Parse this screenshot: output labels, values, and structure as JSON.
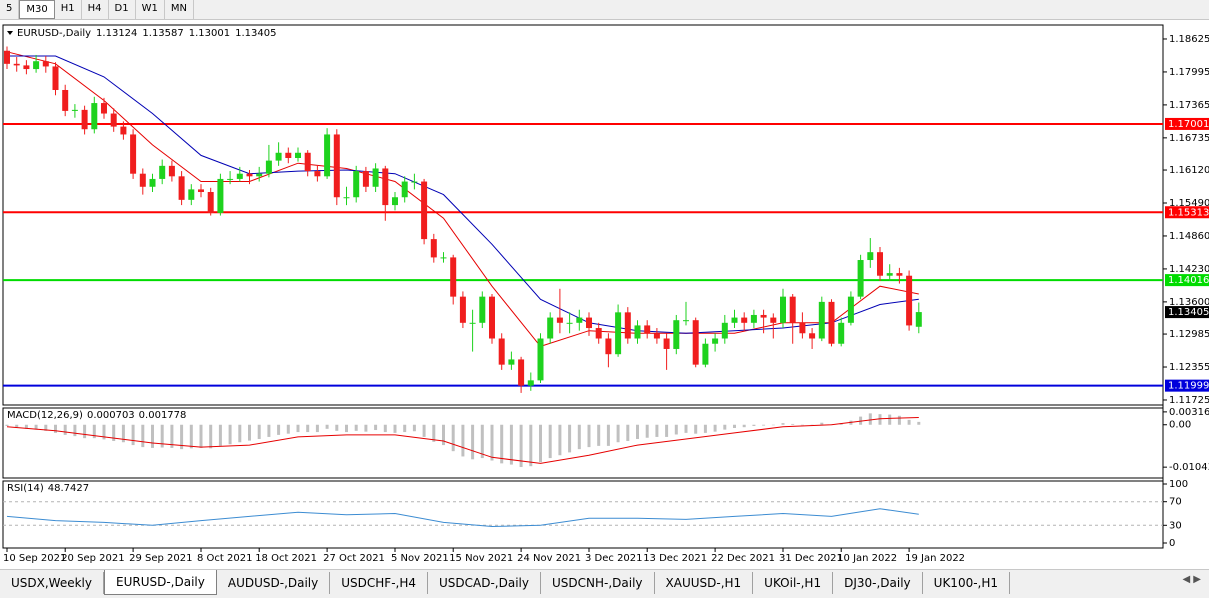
{
  "toolbar": {
    "timeframes": [
      "5",
      "M30",
      "H1",
      "H4",
      "D1",
      "W1",
      "MN"
    ],
    "active": 1
  },
  "chart_data": [
    {
      "type": "candlestick",
      "symbol": "EURUSD-,Daily",
      "categories": [
        "10 Sep 2021",
        null,
        null,
        null,
        null,
        null,
        "20 Sep 2021",
        null,
        null,
        null,
        null,
        null,
        null,
        "29 Sep 2021",
        null,
        null,
        null,
        null,
        null,
        null,
        "8 Oct 2021",
        null,
        null,
        null,
        null,
        null,
        "18 Oct 2021",
        null,
        null,
        null,
        null,
        null,
        null,
        "27 Oct 2021",
        null,
        null,
        null,
        null,
        null,
        null,
        "5 Nov 2021",
        null,
        null,
        null,
        null,
        null,
        "15 Nov 2021",
        null,
        null,
        null,
        null,
        null,
        null,
        "24 Nov 2021",
        null,
        null,
        null,
        null,
        null,
        null,
        "3 Dec 2021",
        null,
        null,
        null,
        null,
        null,
        "13 Dec 2021",
        null,
        null,
        null,
        null,
        null,
        null,
        "22 Dec 2021",
        null,
        null,
        null,
        null,
        null,
        null,
        "31 Dec 2021",
        null,
        null,
        null,
        null,
        null,
        "10 Jan 2022",
        null,
        null,
        null,
        null,
        null,
        null,
        "19 Jan 2022",
        null
      ],
      "ohlc": [
        [
          1.184,
          1.1848,
          1.1805,
          1.1815
        ],
        [
          1.1815,
          1.1828,
          1.18,
          1.1812
        ],
        [
          1.1812,
          1.1822,
          1.1795,
          1.1805
        ],
        [
          1.1805,
          1.1832,
          1.1798,
          1.182
        ],
        [
          1.182,
          1.183,
          1.1798,
          1.181
        ],
        [
          1.181,
          1.1818,
          1.1755,
          1.1765
        ],
        [
          1.1765,
          1.1775,
          1.1715,
          1.1725
        ],
        [
          1.1725,
          1.1738,
          1.1712,
          1.1727
        ],
        [
          1.1727,
          1.1735,
          1.168,
          1.169
        ],
        [
          1.169,
          1.1752,
          1.1682,
          1.174
        ],
        [
          1.174,
          1.175,
          1.171,
          1.172
        ],
        [
          1.172,
          1.173,
          1.1685,
          1.1695
        ],
        [
          1.1695,
          1.1705,
          1.167,
          1.168
        ],
        [
          1.168,
          1.169,
          1.1595,
          1.1605
        ],
        [
          1.1605,
          1.1615,
          1.1565,
          1.158
        ],
        [
          1.158,
          1.1605,
          1.157,
          1.1595
        ],
        [
          1.1595,
          1.1632,
          1.1585,
          1.162
        ],
        [
          1.162,
          1.163,
          1.159,
          1.16
        ],
        [
          1.16,
          1.161,
          1.1545,
          1.1555
        ],
        [
          1.1555,
          1.1585,
          1.1545,
          1.1575
        ],
        [
          1.1575,
          1.1585,
          1.156,
          1.157
        ],
        [
          1.157,
          1.1578,
          1.1525,
          1.153
        ],
        [
          1.153,
          1.1605,
          1.1525,
          1.1595
        ],
        [
          1.1595,
          1.161,
          1.1585,
          1.1595
        ],
        [
          1.1595,
          1.1618,
          1.159,
          1.1605
        ],
        [
          1.1605,
          1.1612,
          1.1585,
          1.16
        ],
        [
          1.16,
          1.1618,
          1.159,
          1.1605
        ],
        [
          1.1605,
          1.166,
          1.1598,
          1.163
        ],
        [
          1.163,
          1.1665,
          1.162,
          1.1645
        ],
        [
          1.1645,
          1.1655,
          1.1625,
          1.1635
        ],
        [
          1.1635,
          1.1655,
          1.1628,
          1.1645
        ],
        [
          1.1645,
          1.165,
          1.16,
          1.161
        ],
        [
          1.161,
          1.162,
          1.159,
          1.16
        ],
        [
          1.16,
          1.1692,
          1.1595,
          1.168
        ],
        [
          1.168,
          1.169,
          1.1545,
          1.156
        ],
        [
          1.156,
          1.158,
          1.1545,
          1.156
        ],
        [
          1.156,
          1.162,
          1.155,
          1.161
        ],
        [
          1.161,
          1.1618,
          1.157,
          1.158
        ],
        [
          1.158,
          1.1625,
          1.157,
          1.1615
        ],
        [
          1.1615,
          1.162,
          1.1515,
          1.1545
        ],
        [
          1.1545,
          1.157,
          1.1535,
          1.156
        ],
        [
          1.156,
          1.16,
          1.155,
          1.159
        ],
        [
          1.159,
          1.1605,
          1.1575,
          1.159
        ],
        [
          1.159,
          1.1595,
          1.147,
          1.148
        ],
        [
          1.148,
          1.149,
          1.1435,
          1.1445
        ],
        [
          1.1445,
          1.1455,
          1.1435,
          1.1445
        ],
        [
          1.1445,
          1.145,
          1.1355,
          1.137
        ],
        [
          1.137,
          1.138,
          1.131,
          1.132
        ],
        [
          1.132,
          1.1345,
          1.1265,
          1.132
        ],
        [
          1.132,
          1.138,
          1.131,
          1.137
        ],
        [
          1.137,
          1.1375,
          1.128,
          1.129
        ],
        [
          1.129,
          1.13,
          1.123,
          1.124
        ],
        [
          1.124,
          1.1265,
          1.123,
          1.125
        ],
        [
          1.125,
          1.1255,
          1.1186,
          1.12
        ],
        [
          1.12,
          1.1225,
          1.119,
          1.121
        ],
        [
          1.121,
          1.13,
          1.1205,
          1.129
        ],
        [
          1.129,
          1.134,
          1.128,
          1.133
        ],
        [
          1.133,
          1.1385,
          1.13,
          1.132
        ],
        [
          1.132,
          1.134,
          1.13,
          1.132
        ],
        [
          1.132,
          1.1345,
          1.1305,
          1.133
        ],
        [
          1.133,
          1.134,
          1.1295,
          1.131
        ],
        [
          1.131,
          1.132,
          1.128,
          1.129
        ],
        [
          1.129,
          1.13,
          1.1235,
          1.126
        ],
        [
          1.126,
          1.1355,
          1.1255,
          1.134
        ],
        [
          1.134,
          1.135,
          1.128,
          1.129
        ],
        [
          1.129,
          1.1325,
          1.128,
          1.1315
        ],
        [
          1.1315,
          1.1325,
          1.129,
          1.13
        ],
        [
          1.13,
          1.131,
          1.128,
          1.129
        ],
        [
          1.129,
          1.13,
          1.123,
          1.127
        ],
        [
          1.127,
          1.1335,
          1.126,
          1.1325
        ],
        [
          1.1325,
          1.136,
          1.1315,
          1.1325
        ],
        [
          1.1325,
          1.133,
          1.1235,
          1.124
        ],
        [
          1.124,
          1.129,
          1.1235,
          1.128
        ],
        [
          1.128,
          1.13,
          1.1265,
          1.129
        ],
        [
          1.129,
          1.1335,
          1.128,
          1.132
        ],
        [
          1.132,
          1.1345,
          1.131,
          1.133
        ],
        [
          1.133,
          1.134,
          1.1305,
          1.132
        ],
        [
          1.132,
          1.1345,
          1.131,
          1.1335
        ],
        [
          1.1335,
          1.1345,
          1.13,
          1.133
        ],
        [
          1.133,
          1.1338,
          1.129,
          1.132
        ],
        [
          1.132,
          1.1385,
          1.131,
          1.137
        ],
        [
          1.137,
          1.1375,
          1.128,
          1.132
        ],
        [
          1.132,
          1.134,
          1.129,
          1.13
        ],
        [
          1.13,
          1.131,
          1.127,
          1.129
        ],
        [
          1.129,
          1.137,
          1.1285,
          1.136
        ],
        [
          1.136,
          1.1365,
          1.1275,
          1.128
        ],
        [
          1.128,
          1.133,
          1.1275,
          1.132
        ],
        [
          1.132,
          1.138,
          1.1315,
          1.137
        ],
        [
          1.137,
          1.145,
          1.1365,
          1.144
        ],
        [
          1.144,
          1.1482,
          1.1425,
          1.1455
        ],
        [
          1.1455,
          1.1465,
          1.14,
          1.141
        ],
        [
          1.141,
          1.1432,
          1.14,
          1.1415
        ],
        [
          1.1415,
          1.1425,
          1.1395,
          1.141
        ],
        [
          1.141,
          1.142,
          1.1305,
          1.1315
        ],
        [
          1.13124,
          1.13587,
          1.13001,
          1.13405
        ]
      ],
      "colors": {
        "up": "#1ed21e",
        "down": "#f01e1e"
      },
      "ylim": [
        1.11629,
        1.18873
      ],
      "yticks": [
        1.18625,
        1.17995,
        1.17365,
        1.16735,
        {
          "value": 1.1612,
          "label": "1.16120"
        },
        {
          "value": 1.1549,
          "label": "1.15490"
        },
        {
          "value": 1.1486,
          "label": "1.14860"
        },
        {
          "value": 1.1423,
          "label": "1.14230"
        },
        {
          "value": 1.136,
          "label": "1.13600"
        },
        1.12985,
        1.12355,
        1.11725
      ],
      "moving_averages": [
        {
          "color": "#e60000",
          "x": [
            0,
            5,
            10,
            15,
            20,
            25,
            30,
            35,
            40,
            45,
            50,
            55,
            60,
            65,
            70,
            75,
            80,
            85,
            90,
            94
          ],
          "values": [
            1.1838,
            1.1815,
            1.1745,
            1.166,
            1.159,
            1.159,
            1.1625,
            1.1615,
            1.159,
            1.152,
            1.139,
            1.1275,
            1.1305,
            1.13,
            1.13,
            1.13,
            1.132,
            1.132,
            1.139,
            1.1375
          ]
        },
        {
          "color": "#0000b4",
          "x": [
            0,
            5,
            10,
            15,
            20,
            25,
            30,
            35,
            40,
            45,
            50,
            55,
            60,
            65,
            70,
            75,
            80,
            85,
            90,
            94
          ],
          "values": [
            1.183,
            1.183,
            1.179,
            1.172,
            1.164,
            1.1605,
            1.161,
            1.1612,
            1.1605,
            1.1565,
            1.147,
            1.1365,
            1.132,
            1.1305,
            1.13,
            1.1305,
            1.131,
            1.132,
            1.1355,
            1.1365
          ]
        }
      ],
      "levels": [
        {
          "value": 1.17001,
          "color": "#ff0000"
        },
        {
          "value": 1.15313,
          "color": "#ff0000"
        },
        {
          "value": 1.14016,
          "color": "#00dc00"
        },
        {
          "value": 1.11999,
          "color": "#0000dc"
        }
      ]
    },
    {
      "type": "macd",
      "label": "MACD(12,26,9)",
      "values": [
        -0.0003,
        -0.0006,
        -0.001,
        -0.0012,
        -0.0015,
        -0.002,
        -0.0025,
        -0.0028,
        -0.0033,
        -0.0033,
        -0.0036,
        -0.004,
        -0.0043,
        -0.005,
        -0.0055,
        -0.0057,
        -0.0056,
        -0.0057,
        -0.006,
        -0.0058,
        -0.0057,
        -0.0058,
        -0.0052,
        -0.0048,
        -0.0043,
        -0.0039,
        -0.0035,
        -0.003,
        -0.0025,
        -0.0022,
        -0.0018,
        -0.0018,
        -0.0018,
        -0.001,
        -0.0015,
        -0.0018,
        -0.0015,
        -0.0017,
        -0.0013,
        -0.0018,
        -0.002,
        -0.0018,
        -0.0016,
        -0.003,
        -0.0042,
        -0.005,
        -0.0065,
        -0.0078,
        -0.0085,
        -0.0082,
        -0.0088,
        -0.0095,
        -0.0098,
        -0.0104,
        -0.0102,
        -0.0092,
        -0.0082,
        -0.0075,
        -0.0068,
        -0.006,
        -0.0055,
        -0.0052,
        -0.0052,
        -0.0043,
        -0.004,
        -0.0035,
        -0.0032,
        -0.003,
        -0.003,
        -0.0024,
        -0.002,
        -0.0022,
        -0.002,
        -0.0017,
        -0.0012,
        -0.0008,
        -0.0006,
        -0.0003,
        -0.0002,
        -0.0001,
        0.0004,
        0.0002,
        0.0,
        -0.0001,
        0.0005,
        0.0001,
        0.0004,
        0.001,
        0.002,
        0.0028,
        0.0026,
        0.0025,
        0.0022,
        0.0012,
        0.000703
      ],
      "color": "#c0c0c0",
      "signal": {
        "color": "#e60000",
        "x": [
          0,
          5,
          10,
          15,
          20,
          25,
          30,
          35,
          40,
          45,
          50,
          55,
          60,
          65,
          70,
          75,
          80,
          85,
          90,
          94
        ],
        "values": [
          -0.0005,
          -0.0015,
          -0.003,
          -0.0045,
          -0.0055,
          -0.005,
          -0.003,
          -0.0025,
          -0.0025,
          -0.004,
          -0.008,
          -0.0095,
          -0.0075,
          -0.005,
          -0.0035,
          -0.002,
          -0.0005,
          0.0,
          0.0015,
          0.001778
        ]
      },
      "ylim": [
        -0.0131,
        0.00412
      ],
      "yticks": [
        0.003165,
        {
          "value": 0,
          "label": "0.00"
        },
        -0.010431
      ]
    },
    {
      "type": "rsi",
      "label": "RSI(14)",
      "x": [
        0,
        5,
        10,
        15,
        20,
        25,
        30,
        35,
        40,
        45,
        50,
        55,
        60,
        65,
        70,
        75,
        80,
        85,
        90,
        94
      ],
      "values": [
        45,
        38,
        35,
        30,
        38,
        45,
        52,
        48,
        50,
        35,
        28,
        30,
        42,
        42,
        40,
        45,
        50,
        45,
        58,
        48.7427
      ],
      "color": "#3c8cd2",
      "levels": [
        70,
        30
      ],
      "ylim": [
        0,
        100
      ],
      "yticks": [
        100,
        70,
        30,
        0
      ]
    }
  ],
  "tabs": {
    "items": [
      "USDX,Weekly",
      "EURUSD-,Daily",
      "AUDUSD-,Daily",
      "USDCHF-,H4",
      "USDCAD-,Daily",
      "USDCNH-,Daily",
      "XAUUSD-,H1",
      "UKOil-,H1",
      "DJ30-,Daily",
      "UK100-,H1"
    ],
    "active": 1
  }
}
